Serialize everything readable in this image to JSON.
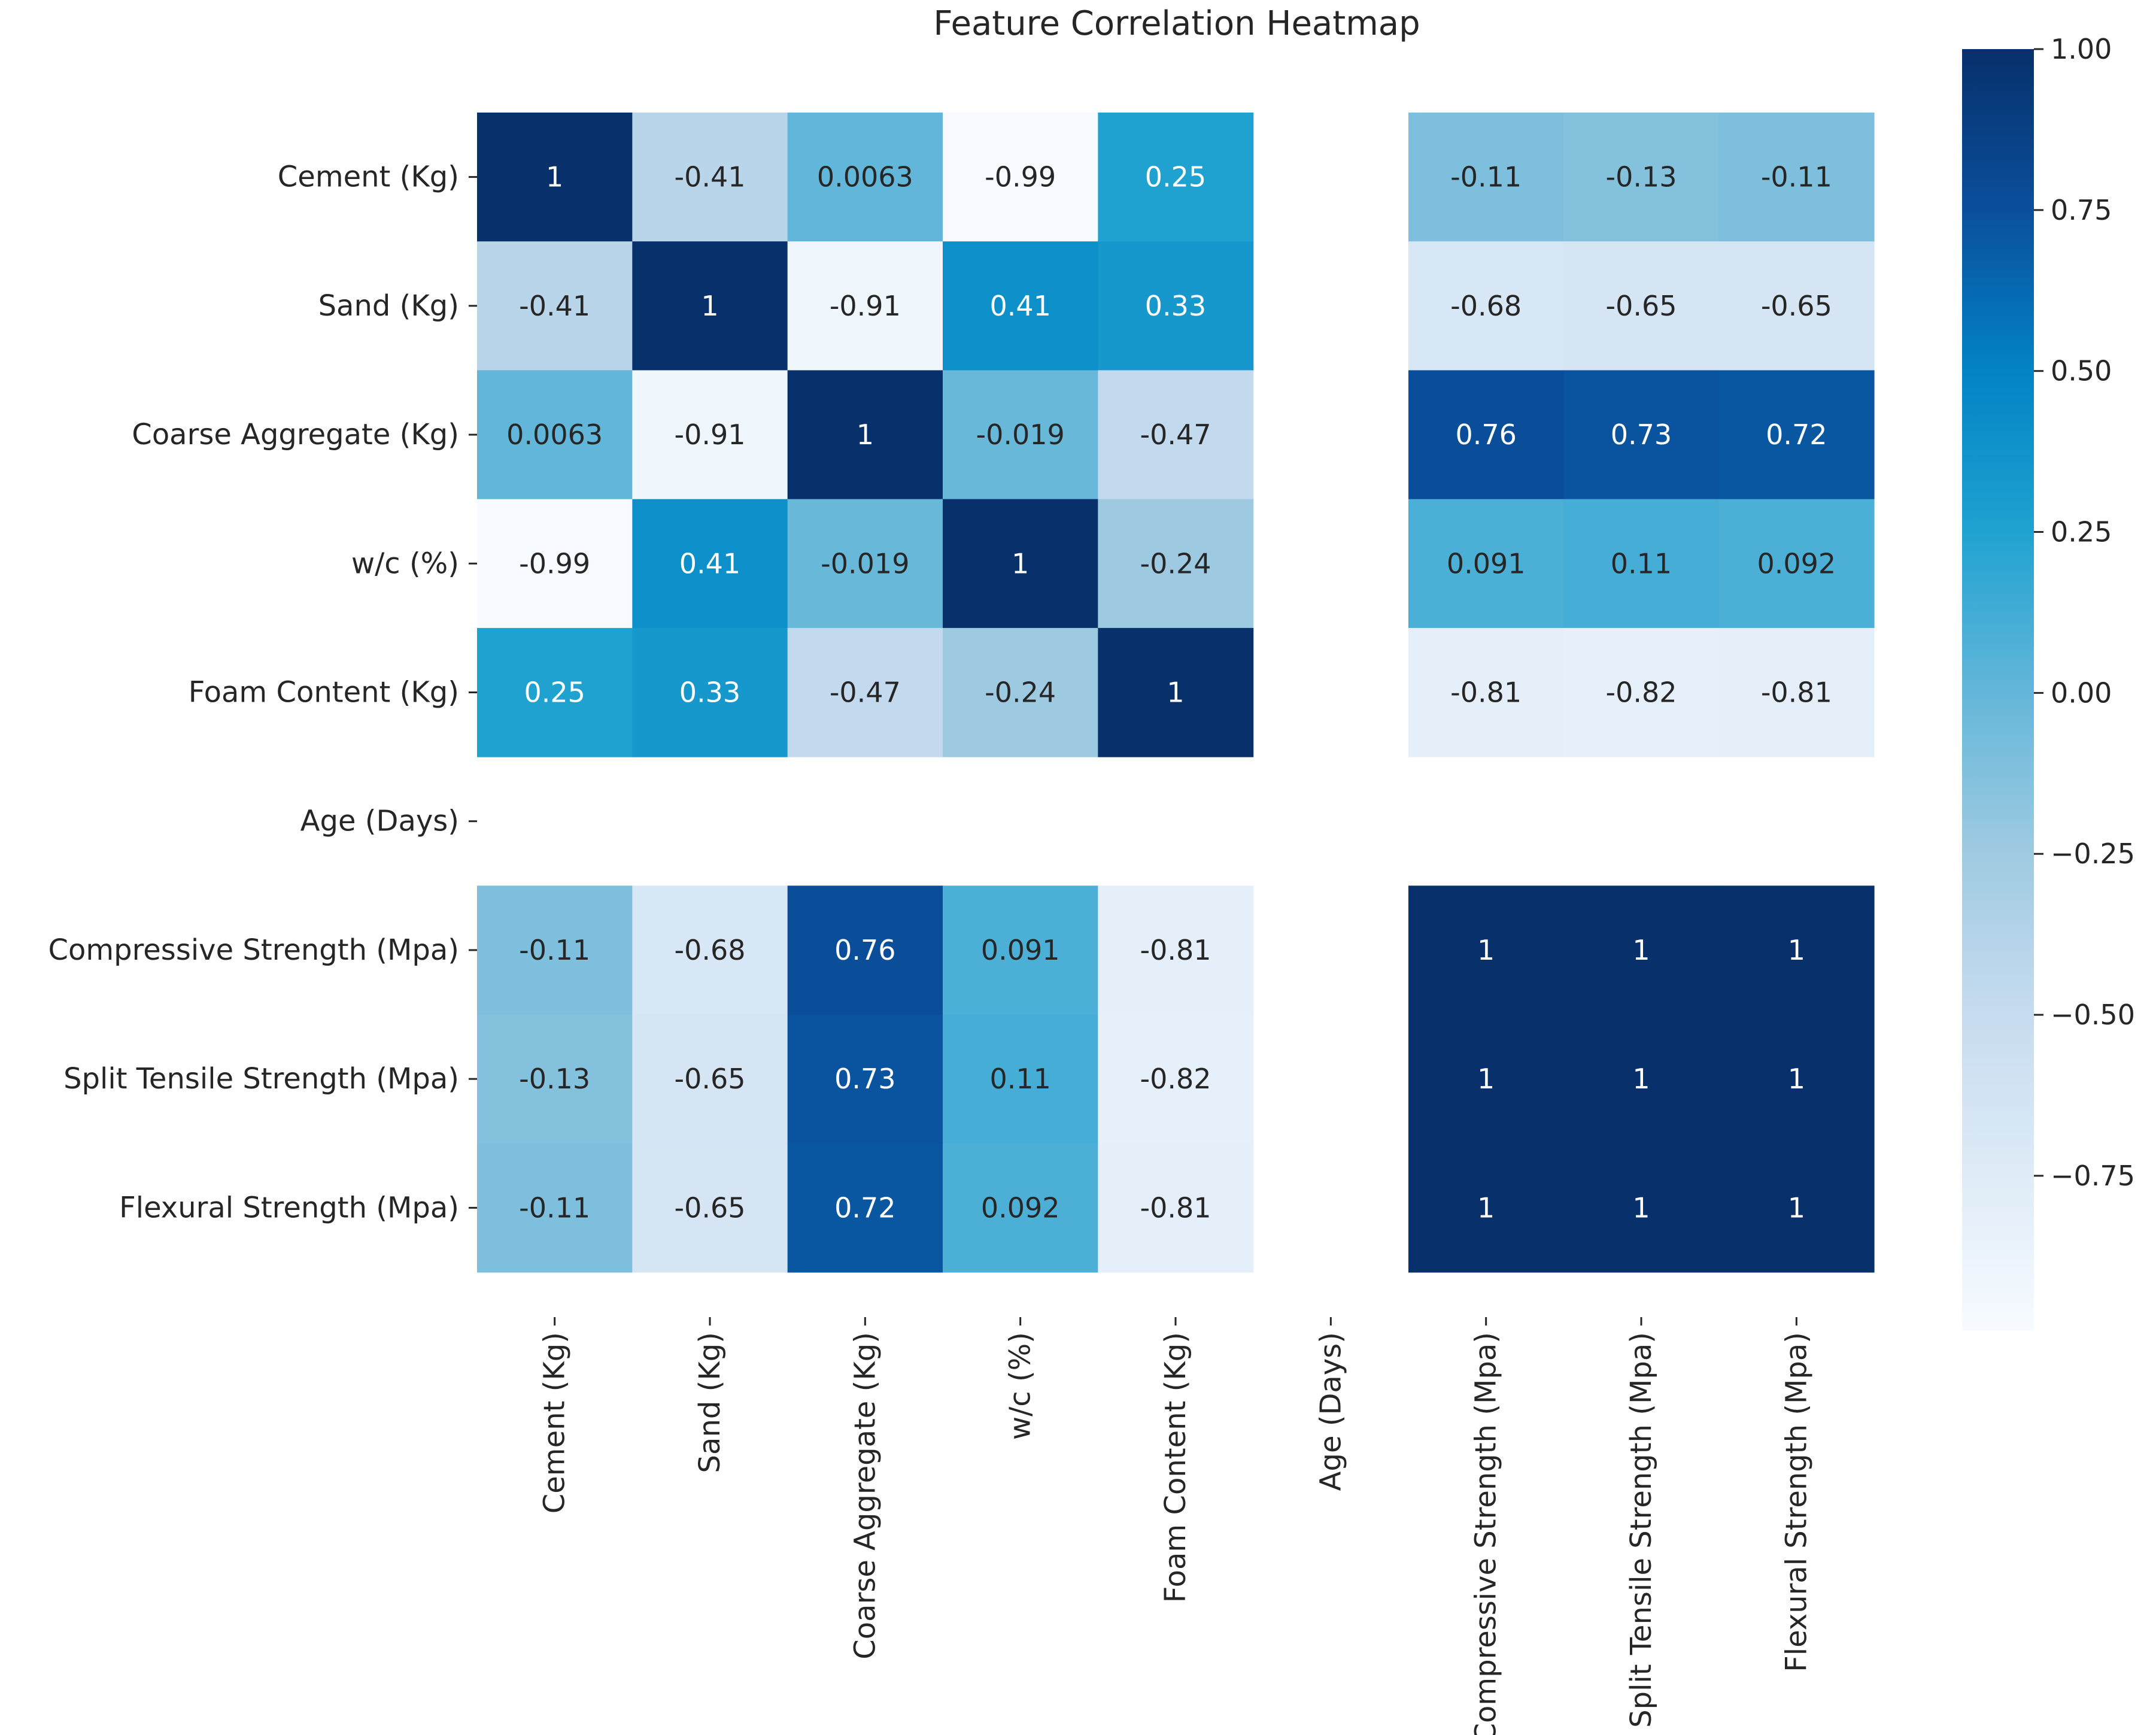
{
  "chart_data": {
    "type": "heatmap",
    "title": "Feature Correlation Heatmap",
    "labels": [
      "Cement (Kg)",
      "Sand (Kg)",
      "Coarse Aggregate (Kg)",
      "w/c (%)",
      "Foam Content (Kg)",
      "Age (Days)",
      "Compressive Strength (Mpa)",
      "Split Tensile Strength (Mpa)",
      "Flexural Strength (Mpa)"
    ],
    "matrix": [
      [
        1,
        -0.41,
        0.0063,
        -0.99,
        0.25,
        null,
        -0.11,
        -0.13,
        -0.11
      ],
      [
        -0.41,
        1,
        -0.91,
        0.41,
        0.33,
        null,
        -0.68,
        -0.65,
        -0.65
      ],
      [
        0.0063,
        -0.91,
        1,
        -0.019,
        -0.47,
        null,
        0.76,
        0.73,
        0.72
      ],
      [
        -0.99,
        0.41,
        -0.019,
        1,
        -0.24,
        null,
        0.091,
        0.11,
        0.092
      ],
      [
        0.25,
        0.33,
        -0.47,
        -0.24,
        1,
        null,
        -0.81,
        -0.82,
        -0.81
      ],
      [
        null,
        null,
        null,
        null,
        null,
        null,
        null,
        null,
        null
      ],
      [
        -0.11,
        -0.68,
        0.76,
        0.091,
        -0.81,
        null,
        1,
        1,
        1
      ],
      [
        -0.13,
        -0.65,
        0.73,
        0.11,
        -0.82,
        null,
        1,
        1,
        1
      ],
      [
        -0.11,
        -0.65,
        0.72,
        0.092,
        -0.81,
        null,
        1,
        1,
        1
      ]
    ],
    "annotations": [
      [
        "1",
        "-0.41",
        "0.0063",
        "-0.99",
        "0.25",
        "",
        "-0.11",
        "-0.13",
        "-0.11"
      ],
      [
        "-0.41",
        "1",
        "-0.91",
        "0.41",
        "0.33",
        "",
        "-0.68",
        "-0.65",
        "-0.65"
      ],
      [
        "0.0063",
        "-0.91",
        "1",
        "-0.019",
        "-0.47",
        "",
        "0.76",
        "0.73",
        "0.72"
      ],
      [
        "-0.99",
        "0.41",
        "-0.019",
        "1",
        "-0.24",
        "",
        "0.091",
        "0.11",
        "0.092"
      ],
      [
        "0.25",
        "0.33",
        "-0.47",
        "-0.24",
        "1",
        "",
        "-0.81",
        "-0.82",
        "-0.81"
      ],
      [
        "",
        "",
        "",
        "",
        "",
        "",
        "",
        "",
        ""
      ],
      [
        "-0.11",
        "-0.68",
        "0.76",
        "0.091",
        "-0.81",
        "",
        "1",
        "1",
        "1"
      ],
      [
        "-0.13",
        "-0.65",
        "0.73",
        "0.11",
        "-0.82",
        "",
        "1",
        "1",
        "1"
      ],
      [
        "-0.11",
        "-0.65",
        "0.72",
        "0.092",
        "-0.81",
        "",
        "1",
        "1",
        "1"
      ]
    ],
    "colorbar": {
      "colormap": "Blues",
      "vmin": -0.99,
      "vmax": 1.0,
      "ticks": [
        1.0,
        0.75,
        0.5,
        0.25,
        0.0,
        -0.25,
        -0.5,
        -0.75
      ],
      "tick_labels": [
        "1.00",
        "0.75",
        "0.50",
        "0.25",
        "0.00",
        "−0.25",
        "−0.50",
        "−0.75"
      ],
      "placement": "right"
    }
  }
}
